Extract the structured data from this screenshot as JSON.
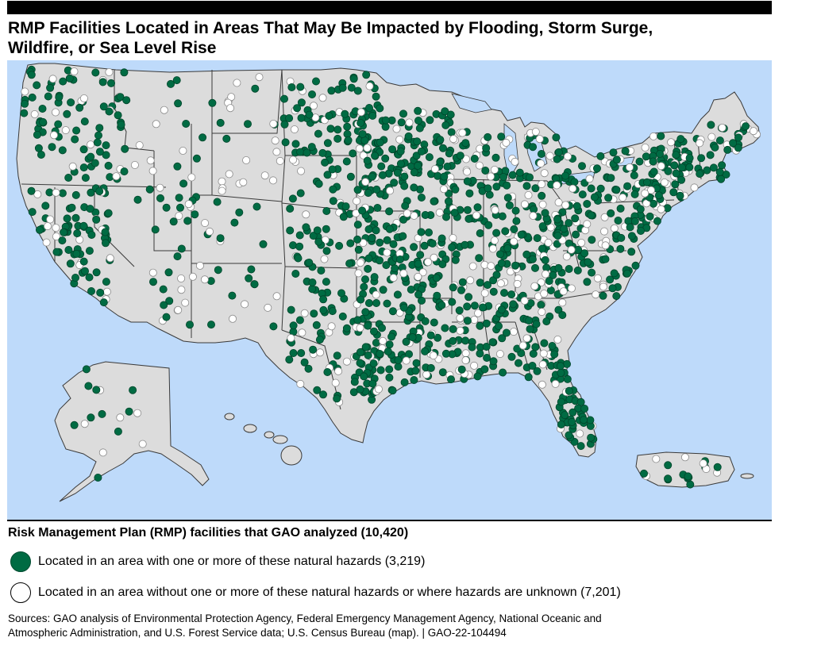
{
  "header": {
    "title_line1": "RMP Facilities Located in Areas That May Be Impacted by Flooding, Storm Surge,",
    "title_line2": "Wildfire, or Sea Level Rise"
  },
  "map": {
    "colors": {
      "water": "#bedafa",
      "land": "#dcdcdc",
      "border": "#3a3a3a",
      "hazard": "#006b43",
      "no_hazard": "#ffffff"
    },
    "regions": [
      "Contiguous United States",
      "Alaska",
      "Hawaii",
      "Puerto Rico"
    ]
  },
  "legend": {
    "title": "Risk Management Plan (RMP) facilities that GAO analyzed (10,420)",
    "items": [
      {
        "label": "Located in an area with one or more of these natural hazards (3,219)",
        "color": "#006b43"
      },
      {
        "label": "Located in an area without one or more of these natural hazards or where hazards are unknown (7,201)",
        "color": "#ffffff"
      }
    ]
  },
  "footer": {
    "sources_line1": "Sources: GAO analysis of Environmental Protection Agency, Federal Emergency Management Agency, National Oceanic and",
    "sources_line2": "Atmospheric Administration, and U.S. Forest Service data; U.S. Census Bureau (map).  |  GAO-22-104494"
  }
}
